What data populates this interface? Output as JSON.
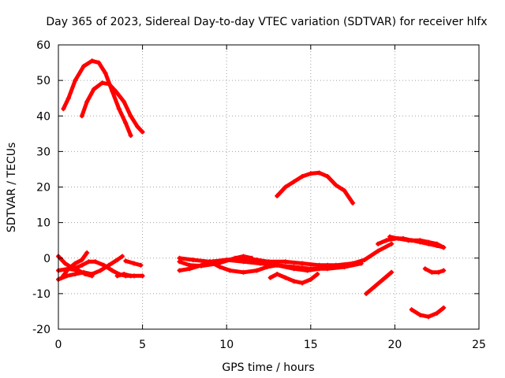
{
  "chart_data": {
    "type": "scatter",
    "title": "Day 365 of 2023, Sidereal Day-to-day VTEC variation (SDTVAR) for receiver hlfx",
    "xlabel": "GPS time / hours",
    "ylabel": "SDTVAR / TECUs",
    "xlim": [
      0,
      25
    ],
    "ylim": [
      -20,
      60
    ],
    "xticks": [
      0,
      5,
      10,
      15,
      20,
      25
    ],
    "yticks": [
      -20,
      -10,
      0,
      10,
      20,
      30,
      40,
      50,
      60
    ],
    "grid": true,
    "color": "#ff0000",
    "series": [
      {
        "name": "arc-1",
        "points": [
          [
            0.3,
            42
          ],
          [
            0.6,
            45
          ],
          [
            1.0,
            50
          ],
          [
            1.5,
            54
          ],
          [
            2.0,
            55.5
          ],
          [
            2.4,
            55
          ],
          [
            2.8,
            52
          ],
          [
            3.2,
            47
          ],
          [
            3.6,
            42
          ],
          [
            4.0,
            38
          ],
          [
            4.3,
            34.5
          ]
        ]
      },
      {
        "name": "arc-2",
        "points": [
          [
            1.4,
            40
          ],
          [
            1.7,
            44
          ],
          [
            2.1,
            47.5
          ],
          [
            2.6,
            49.3
          ],
          [
            3.0,
            49
          ],
          [
            3.4,
            47
          ],
          [
            3.9,
            44
          ],
          [
            4.3,
            40
          ],
          [
            4.7,
            37
          ],
          [
            5.0,
            35.5
          ]
        ]
      },
      {
        "name": "arc-3",
        "points": [
          [
            0.0,
            -6
          ],
          [
            0.5,
            -5
          ],
          [
            1.0,
            -4.5
          ],
          [
            1.5,
            -4
          ],
          [
            2.0,
            -4.5
          ],
          [
            2.5,
            -3.5
          ],
          [
            3.0,
            -2
          ],
          [
            3.5,
            -0.5
          ],
          [
            3.8,
            0.5
          ]
        ]
      },
      {
        "name": "arc-4",
        "points": [
          [
            0.0,
            0.5
          ],
          [
            0.4,
            -1.5
          ],
          [
            0.9,
            -3
          ],
          [
            1.4,
            -2
          ],
          [
            1.8,
            -1
          ],
          [
            2.2,
            -1
          ],
          [
            2.7,
            -2
          ],
          [
            3.2,
            -3.5
          ],
          [
            3.6,
            -4.5
          ],
          [
            4.0,
            -5
          ],
          [
            4.5,
            -5
          ],
          [
            5.0,
            -5
          ]
        ]
      },
      {
        "name": "arc-5",
        "points": [
          [
            0.2,
            -5.5
          ],
          [
            0.6,
            -3
          ],
          [
            1.0,
            -1.5
          ],
          [
            1.4,
            -0.5
          ],
          [
            1.7,
            1.5
          ]
        ]
      },
      {
        "name": "arc-6",
        "points": [
          [
            0.0,
            -3.5
          ],
          [
            0.6,
            -3
          ],
          [
            1.2,
            -3.5
          ],
          [
            1.6,
            -4.5
          ],
          [
            2.0,
            -5
          ]
        ]
      },
      {
        "name": "arc-7",
        "points": [
          [
            3.5,
            -5
          ],
          [
            3.9,
            -4.5
          ],
          [
            4.3,
            -5
          ]
        ]
      },
      {
        "name": "arc-8",
        "points": [
          [
            4.0,
            -0.8
          ],
          [
            4.5,
            -1.5
          ],
          [
            4.9,
            -2
          ]
        ]
      },
      {
        "name": "arc-9",
        "points": [
          [
            7.2,
            -3.5
          ],
          [
            7.8,
            -3
          ],
          [
            8.5,
            -2
          ],
          [
            9.2,
            -1
          ],
          [
            10.0,
            -0.5
          ],
          [
            11.0,
            -1
          ],
          [
            12.0,
            -1.5
          ],
          [
            13.0,
            -2
          ],
          [
            14.0,
            -2.5
          ],
          [
            15.0,
            -3
          ],
          [
            16.0,
            -3
          ],
          [
            17.0,
            -2.5
          ],
          [
            18.0,
            -1.5
          ]
        ]
      },
      {
        "name": "arc-10",
        "points": [
          [
            7.2,
            0
          ],
          [
            8.0,
            -0.5
          ],
          [
            9.0,
            -1
          ],
          [
            10.0,
            -0.5
          ],
          [
            11.0,
            0
          ],
          [
            11.8,
            -0.5
          ],
          [
            12.5,
            -1
          ],
          [
            13.5,
            -1
          ],
          [
            14.5,
            -1.5
          ],
          [
            15.5,
            -2
          ],
          [
            16.5,
            -2
          ],
          [
            17.5,
            -1.5
          ],
          [
            18.2,
            -0.5
          ],
          [
            19.0,
            2
          ],
          [
            19.8,
            4
          ]
        ]
      },
      {
        "name": "arc-11",
        "points": [
          [
            7.2,
            -1
          ],
          [
            7.8,
            -2
          ],
          [
            8.5,
            -2.2
          ],
          [
            9.5,
            -1.5
          ],
          [
            10.5,
            0
          ],
          [
            11.0,
            0.5
          ],
          [
            11.5,
            0
          ]
        ]
      },
      {
        "name": "arc-12",
        "points": [
          [
            9.0,
            -1
          ],
          [
            9.6,
            -2.5
          ],
          [
            10.2,
            -3.5
          ],
          [
            11.0,
            -4
          ],
          [
            11.8,
            -3.5
          ],
          [
            12.4,
            -2.5
          ],
          [
            13.0,
            -2
          ],
          [
            14.0,
            -3
          ],
          [
            14.8,
            -3.5
          ],
          [
            15.5,
            -3
          ],
          [
            16.0,
            -2
          ]
        ]
      },
      {
        "name": "arc-13",
        "points": [
          [
            12.6,
            -5.5
          ],
          [
            13.0,
            -4.5
          ],
          [
            13.5,
            -5.5
          ],
          [
            14.0,
            -6.5
          ],
          [
            14.5,
            -7
          ],
          [
            15.0,
            -6
          ],
          [
            15.4,
            -4.5
          ]
        ]
      },
      {
        "name": "arc-14",
        "points": [
          [
            13.0,
            17.5
          ],
          [
            13.5,
            20
          ],
          [
            14.0,
            21.5
          ],
          [
            14.5,
            23
          ],
          [
            15.0,
            23.8
          ],
          [
            15.5,
            24
          ],
          [
            16.0,
            23
          ],
          [
            16.5,
            20.5
          ],
          [
            17.0,
            19
          ],
          [
            17.5,
            15.5
          ]
        ]
      },
      {
        "name": "arc-15",
        "points": [
          [
            19.0,
            4
          ],
          [
            19.5,
            5
          ],
          [
            20.0,
            5.5
          ],
          [
            20.5,
            5.5
          ],
          [
            21.0,
            5
          ],
          [
            21.5,
            4.5
          ],
          [
            22.0,
            4
          ],
          [
            22.5,
            3.5
          ],
          [
            22.9,
            3
          ]
        ]
      },
      {
        "name": "arc-16",
        "points": [
          [
            19.7,
            6
          ],
          [
            20.2,
            5.5
          ],
          [
            20.8,
            5
          ],
          [
            21.5,
            5
          ],
          [
            22.0,
            4.5
          ],
          [
            22.5,
            4
          ],
          [
            22.9,
            3
          ]
        ]
      },
      {
        "name": "arc-17",
        "points": [
          [
            18.3,
            -10
          ],
          [
            18.8,
            -8
          ],
          [
            19.3,
            -6
          ],
          [
            19.8,
            -4
          ]
        ]
      },
      {
        "name": "arc-18",
        "points": [
          [
            21.8,
            -3
          ],
          [
            22.2,
            -4
          ],
          [
            22.6,
            -4
          ],
          [
            22.9,
            -3.5
          ]
        ]
      },
      {
        "name": "arc-19",
        "points": [
          [
            21.0,
            -14.5
          ],
          [
            21.5,
            -16
          ],
          [
            22.0,
            -16.5
          ],
          [
            22.5,
            -15.5
          ],
          [
            22.9,
            -14
          ]
        ]
      }
    ]
  }
}
